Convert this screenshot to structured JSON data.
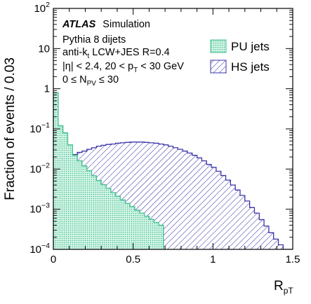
{
  "chart_data": {
    "type": "histogram",
    "bin_width": 0.03,
    "xlabel_main": "R",
    "xlabel_sub": "pT",
    "ylabel": "Fraction of events / 0.03",
    "xlim": [
      0,
      1.5
    ],
    "ylim": [
      0.0001,
      100
    ],
    "yscale": "log",
    "x_ticks": [
      {
        "value": 0,
        "label": "0"
      },
      {
        "value": 0.5,
        "label": "0.5"
      },
      {
        "value": 1,
        "label": "1"
      },
      {
        "value": 1.5,
        "label": "1.5"
      }
    ],
    "y_ticks": [
      {
        "value": 100,
        "base": "10",
        "exp": "2"
      },
      {
        "value": 10,
        "base": "10",
        "exp": ""
      },
      {
        "value": 1,
        "base": "1",
        "exp": ""
      },
      {
        "value": 0.1,
        "base": "10",
        "exp": "−1"
      },
      {
        "value": 0.01,
        "base": "10",
        "exp": "−2"
      },
      {
        "value": 0.001,
        "base": "10",
        "exp": "−3"
      },
      {
        "value": 0.0001,
        "base": "10",
        "exp": "−4"
      }
    ],
    "annotations": {
      "experiment": "ATLAS",
      "status": "Simulation",
      "generator": "Pythia 8 dijets",
      "jets_prefix": "anti-k",
      "jets_sub": "t",
      "jets_suffix": " LCW+JES R=0.4",
      "cuts_a": "|η| < 2.4, 20 < p",
      "cuts_sub": "T",
      "cuts_b": " < 30 GeV",
      "npv_a": "0 ≤ N",
      "npv_sub": "PV",
      "npv_b": " ≤ 30"
    },
    "series": [
      {
        "name": "PU jets",
        "color": "#3fbf8f",
        "pattern": "dots",
        "values": [
          0.8,
          0.12,
          0.08,
          0.04,
          0.022,
          0.016,
          0.012,
          0.009,
          0.0068,
          0.0052,
          0.0041,
          0.0033,
          0.0026,
          0.0021,
          0.0017,
          0.0014,
          0.00115,
          0.00095,
          0.0008,
          0.00067,
          0.00056,
          0.00047,
          0.0004
        ]
      },
      {
        "name": "HS jets",
        "color": "#3a33a8",
        "pattern": "hatch",
        "values": [
          0.016,
          0.017,
          0.019,
          0.022,
          0.023,
          0.026,
          0.028,
          0.031,
          0.034,
          0.037,
          0.039,
          0.041,
          0.042,
          0.044,
          0.045,
          0.046,
          0.047,
          0.047,
          0.047,
          0.046,
          0.045,
          0.044,
          0.042,
          0.04,
          0.037,
          0.034,
          0.031,
          0.028,
          0.025,
          0.022,
          0.019,
          0.016,
          0.013,
          0.011,
          0.0088,
          0.0069,
          0.0053,
          0.004,
          0.003,
          0.0022,
          0.0016,
          0.0011,
          0.0008,
          0.00055,
          0.00038,
          0.00026,
          0.00018,
          0.00013,
          0.0001,
          0.0001
        ]
      }
    ]
  }
}
